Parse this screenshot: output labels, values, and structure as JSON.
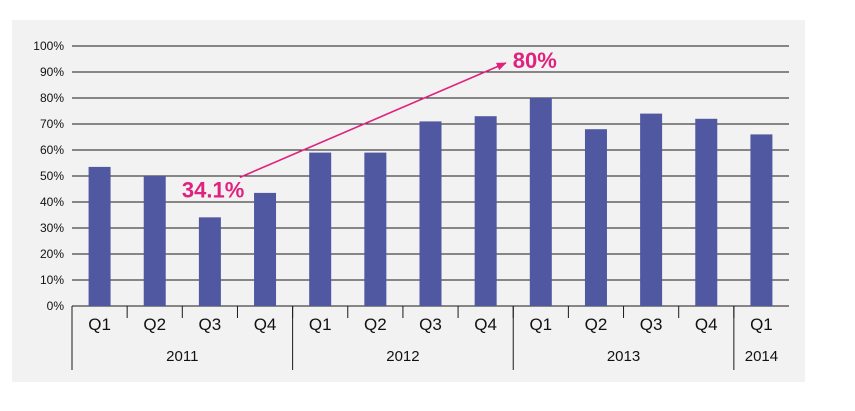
{
  "chart_data": {
    "type": "bar",
    "title": "",
    "xlabel": "",
    "ylabel": "",
    "ylim": [
      0,
      100
    ],
    "y_ticks": [
      "0%",
      "10%",
      "20%",
      "30%",
      "40%",
      "50%",
      "60%",
      "70%",
      "80%",
      "90%",
      "100%"
    ],
    "grid": true,
    "categories": [
      "Q1",
      "Q2",
      "Q3",
      "Q4",
      "Q1",
      "Q2",
      "Q3",
      "Q4",
      "Q1",
      "Q2",
      "Q3",
      "Q4",
      "Q1"
    ],
    "groups": [
      {
        "label": "2011",
        "count": 4
      },
      {
        "label": "2012",
        "count": 4
      },
      {
        "label": "2013",
        "count": 4
      },
      {
        "label": "2014",
        "count": 1
      }
    ],
    "values": [
      53.5,
      50,
      34.1,
      43.5,
      59,
      59,
      71,
      73,
      80,
      68,
      74,
      72,
      66
    ],
    "bar_color": "#5158a2",
    "annotations": [
      {
        "text": "34.1%",
        "index": 2,
        "value": 34.1
      },
      {
        "text": "80%",
        "index": 8,
        "value": 80
      }
    ],
    "annotation_color": "#e0227f"
  }
}
